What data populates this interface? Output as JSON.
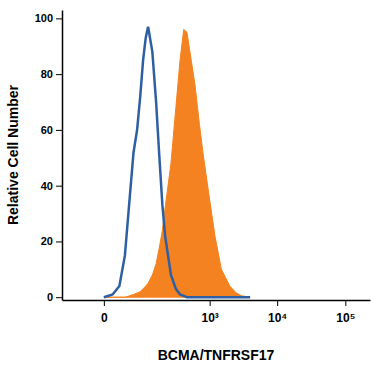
{
  "chart_data": {
    "type": "area",
    "x_label": "BCMA/TNFRSF17",
    "y_label": "Relative Cell Number",
    "x": [
      0,
      10,
      20,
      30,
      40,
      50,
      60,
      70,
      80,
      90,
      100,
      120,
      140,
      160,
      180,
      200,
      250,
      300,
      350,
      400,
      450,
      500,
      600,
      700,
      800,
      1000,
      1200,
      1500,
      2000,
      2500,
      3000,
      4000
    ],
    "series": [
      {
        "color": "#f58220",
        "type": "area",
        "values": [
          0,
          0,
          0,
          0,
          0.5,
          1,
          1.5,
          2,
          3,
          4,
          5,
          8,
          12,
          18,
          24,
          32,
          48,
          68,
          85,
          96,
          95,
          88,
          76,
          62,
          51,
          35,
          22,
          10,
          4,
          1.5,
          0.5,
          0
        ]
      },
      {
        "color": "#2e5fa3",
        "type": "line",
        "values": [
          0,
          1,
          4,
          15,
          35,
          52,
          60,
          72,
          85,
          93,
          97,
          88,
          70,
          50,
          33,
          22,
          8,
          3,
          1,
          0.5,
          0,
          0,
          0,
          0,
          0,
          0,
          0,
          0,
          0,
          0,
          0,
          0
        ]
      }
    ],
    "xlim": [
      -90,
      230000
    ],
    "ylim": [
      -1,
      103
    ],
    "xticks": [
      0,
      {
        "value": 1000,
        "label": "10³"
      },
      {
        "value": 10000,
        "label": "10⁴"
      },
      {
        "value": 100000,
        "label": "10⁵"
      }
    ],
    "yticks": [
      0,
      20,
      40,
      60,
      80,
      100
    ]
  }
}
